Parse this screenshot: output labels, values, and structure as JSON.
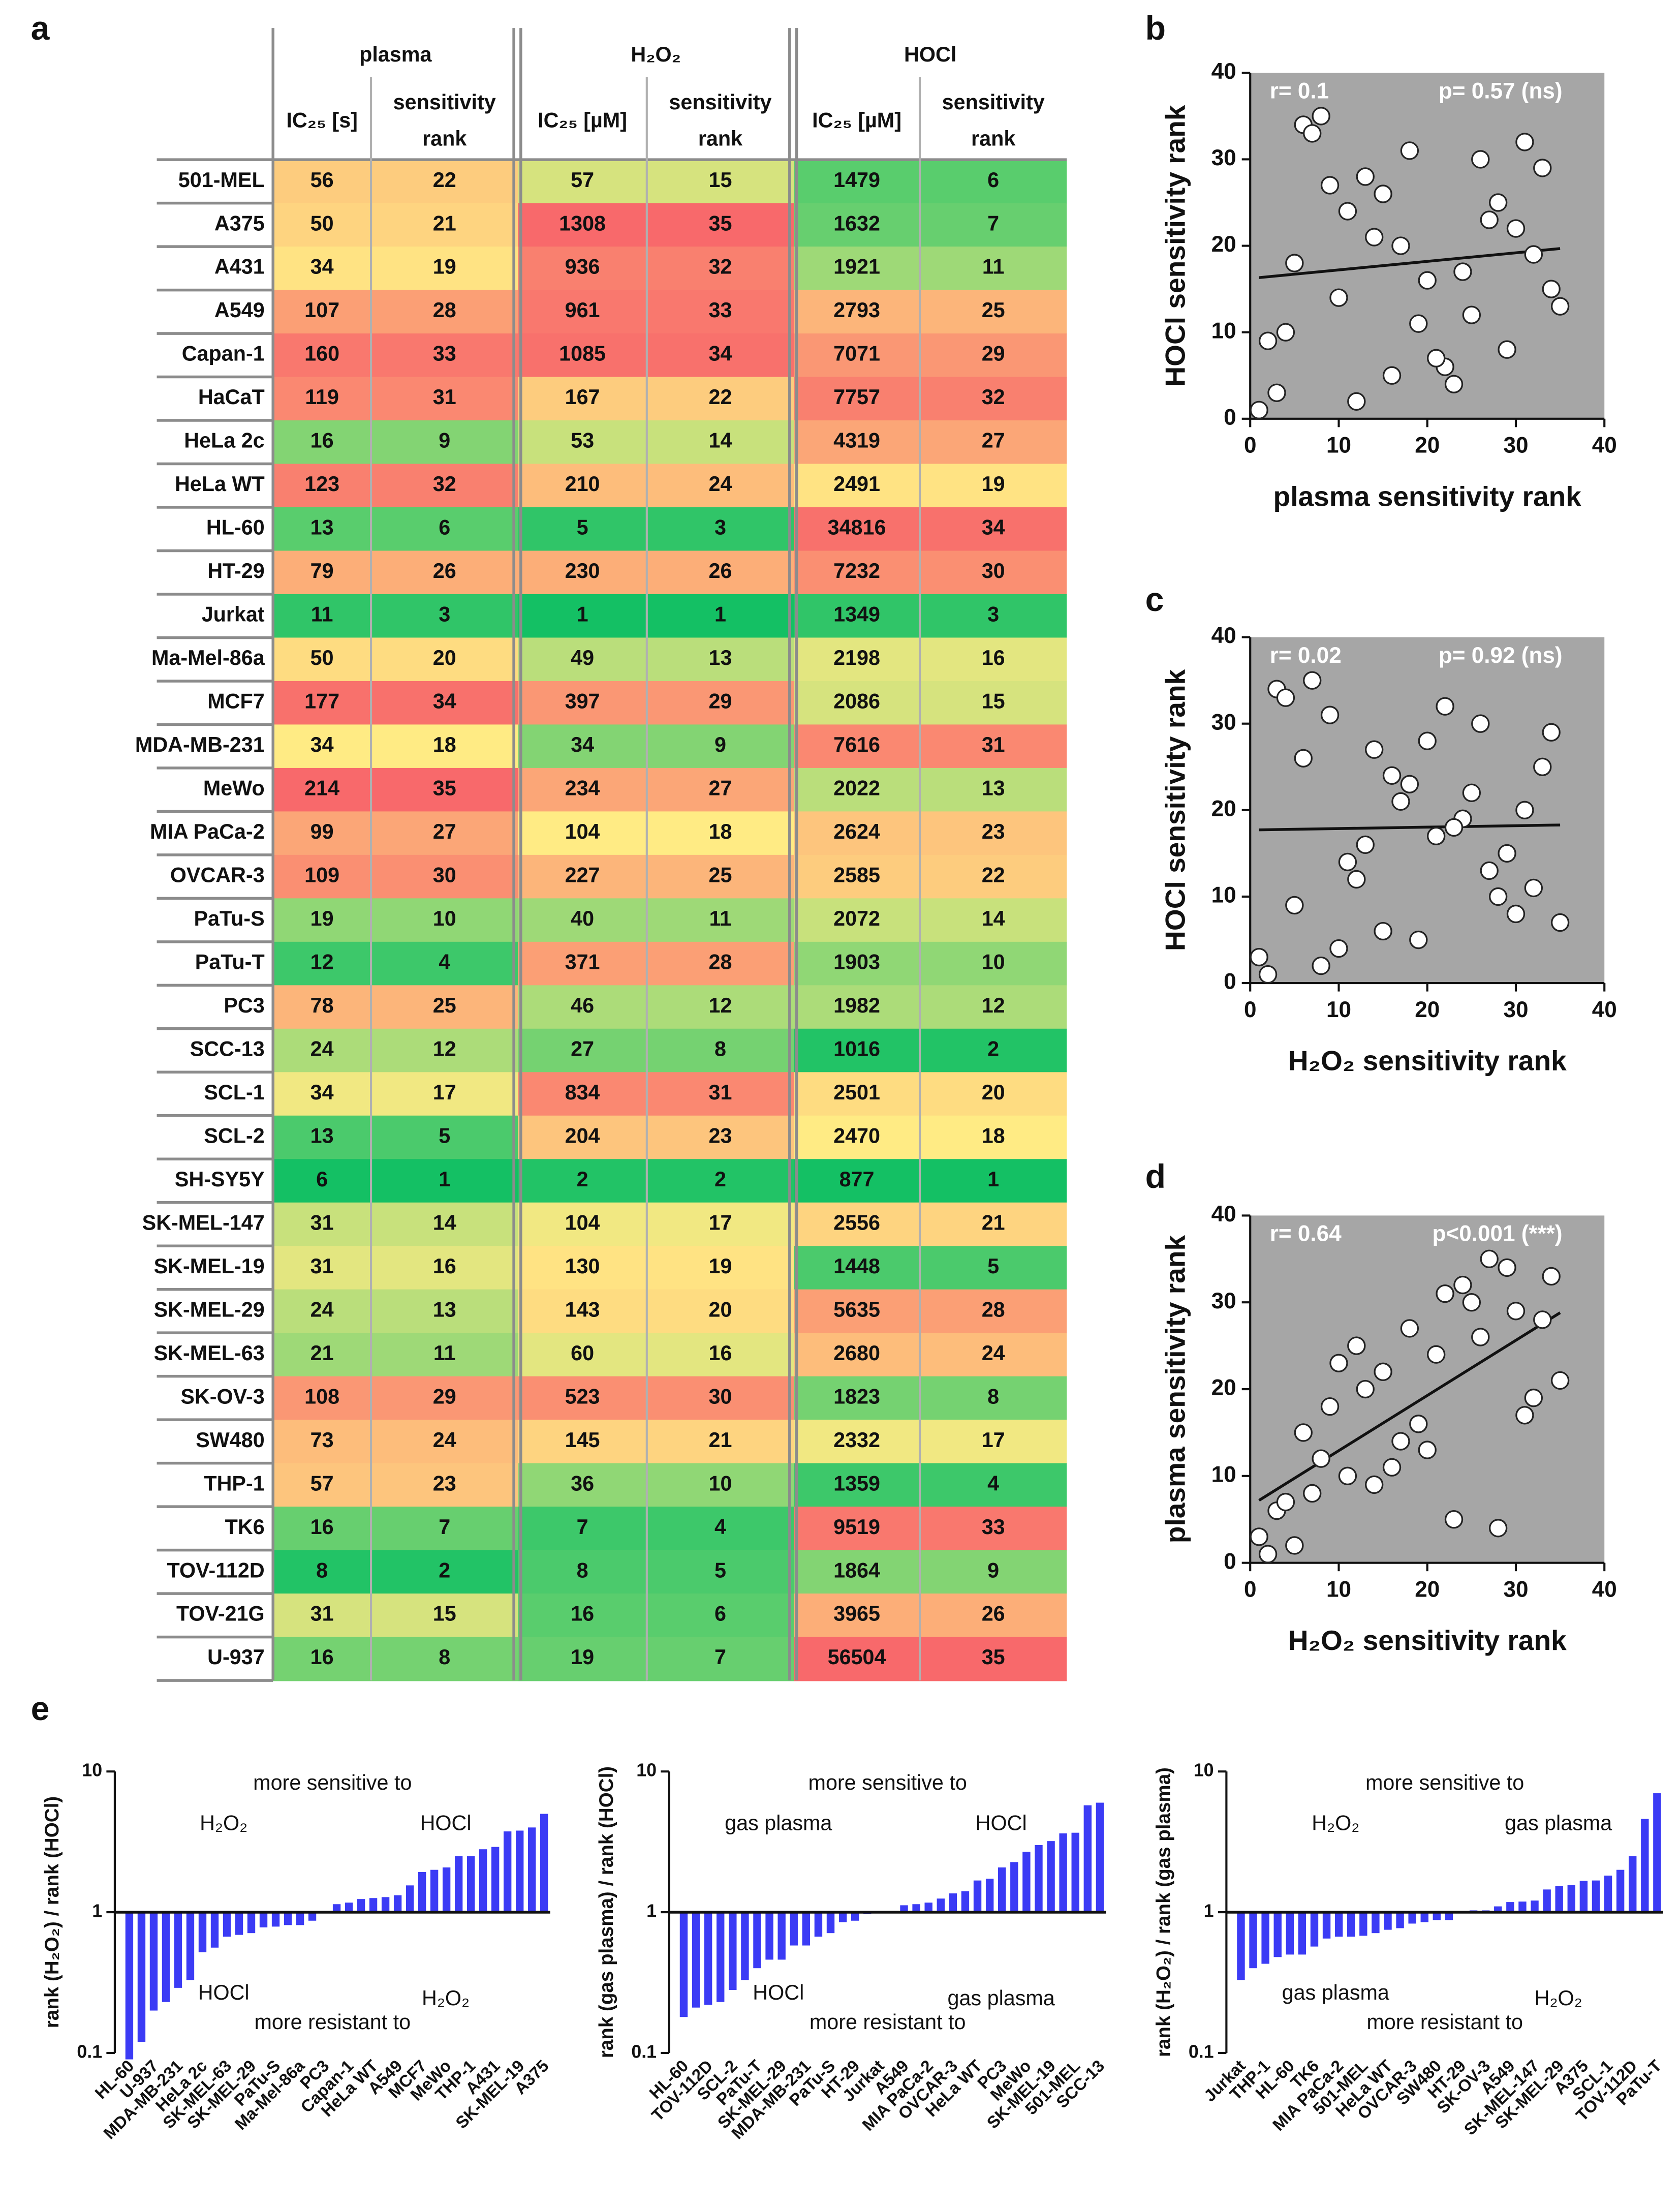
{
  "panel_labels": [
    "a",
    "b",
    "c",
    "d",
    "e"
  ],
  "table": {
    "group_headers": [
      "plasma",
      "H₂O₂",
      "HOCl"
    ],
    "column_headers": [
      [
        "IC₂₅ [s]"
      ],
      [
        "sensitivity",
        "rank"
      ],
      [
        "IC₂₅ [µM]"
      ],
      [
        "sensitivity",
        "rank"
      ],
      [
        "IC₂₅ [µM]"
      ],
      [
        "sensitivity",
        "rank"
      ]
    ],
    "color_scale": {
      "low": "#14c064",
      "mid": "#ffeb84",
      "high": "#f8696b"
    },
    "rows": [
      [
        "501-MEL",
        56,
        22,
        57,
        15,
        1479,
        6
      ],
      [
        "A375",
        50,
        21,
        1308,
        35,
        1632,
        7
      ],
      [
        "A431",
        34,
        19,
        936,
        32,
        1921,
        11
      ],
      [
        "A549",
        107,
        28,
        961,
        33,
        2793,
        25
      ],
      [
        "Capan-1",
        160,
        33,
        1085,
        34,
        7071,
        29
      ],
      [
        "HaCaT",
        119,
        31,
        167,
        22,
        7757,
        32
      ],
      [
        "HeLa 2c",
        16,
        9,
        53,
        14,
        4319,
        27
      ],
      [
        "HeLa WT",
        123,
        32,
        210,
        24,
        2491,
        19
      ],
      [
        "HL-60",
        13,
        6,
        5,
        3,
        34816,
        34
      ],
      [
        "HT-29",
        79,
        26,
        230,
        26,
        7232,
        30
      ],
      [
        "Jurkat",
        11,
        3,
        1,
        1,
        1349,
        3
      ],
      [
        "Ma-Mel-86a",
        50,
        20,
        49,
        13,
        2198,
        16
      ],
      [
        "MCF7",
        177,
        34,
        397,
        29,
        2086,
        15
      ],
      [
        "MDA-MB-231",
        34,
        18,
        34,
        9,
        7616,
        31
      ],
      [
        "MeWo",
        214,
        35,
        234,
        27,
        2022,
        13
      ],
      [
        "MIA PaCa-2",
        99,
        27,
        104,
        18,
        2624,
        23
      ],
      [
        "OVCAR-3",
        109,
        30,
        227,
        25,
        2585,
        22
      ],
      [
        "PaTu-S",
        19,
        10,
        40,
        11,
        2072,
        14
      ],
      [
        "PaTu-T",
        12,
        4,
        371,
        28,
        1903,
        10
      ],
      [
        "PC3",
        78,
        25,
        46,
        12,
        1982,
        12
      ],
      [
        "SCC-13",
        24,
        12,
        27,
        8,
        1016,
        2
      ],
      [
        "SCL-1",
        34,
        17,
        834,
        31,
        2501,
        20
      ],
      [
        "SCL-2",
        13,
        5,
        204,
        23,
        2470,
        18
      ],
      [
        "SH-SY5Y",
        6,
        1,
        2,
        2,
        877,
        1
      ],
      [
        "SK-MEL-147",
        31,
        14,
        104,
        17,
        2556,
        21
      ],
      [
        "SK-MEL-19",
        31,
        16,
        130,
        19,
        1448,
        5
      ],
      [
        "SK-MEL-29",
        24,
        13,
        143,
        20,
        5635,
        28
      ],
      [
        "SK-MEL-63",
        21,
        11,
        60,
        16,
        2680,
        24
      ],
      [
        "SK-OV-3",
        108,
        29,
        523,
        30,
        1823,
        8
      ],
      [
        "SW480",
        73,
        24,
        145,
        21,
        2332,
        17
      ],
      [
        "THP-1",
        57,
        23,
        36,
        10,
        1359,
        4
      ],
      [
        "TK6",
        16,
        7,
        7,
        4,
        9519,
        33
      ],
      [
        "TOV-112D",
        8,
        2,
        8,
        5,
        1864,
        9
      ],
      [
        "TOV-21G",
        31,
        15,
        16,
        6,
        3965,
        26
      ],
      [
        "U-937",
        16,
        8,
        19,
        7,
        56504,
        35
      ]
    ]
  },
  "chart_data": [
    {
      "type": "scatter",
      "annotations": [
        "r= 0.1",
        "p= 0.57 (ns)"
      ],
      "x_label": "plasma sensitivity rank",
      "y_label": "HOCl sensitivity rank",
      "x": [
        22,
        21,
        19,
        28,
        33,
        31,
        9,
        32,
        6,
        26,
        3,
        20,
        34,
        18,
        35,
        27,
        30,
        10,
        4,
        25,
        12,
        17,
        5,
        1,
        14,
        16,
        13,
        11,
        29,
        24,
        23,
        7,
        2,
        15,
        8
      ],
      "y": [
        6,
        7,
        11,
        25,
        29,
        32,
        27,
        19,
        34,
        30,
        3,
        16,
        15,
        31,
        13,
        23,
        22,
        14,
        10,
        12,
        2,
        20,
        18,
        1,
        21,
        5,
        28,
        24,
        8,
        17,
        4,
        33,
        9,
        26,
        35
      ],
      "xlim": [
        0,
        40
      ],
      "ylim": [
        0,
        40
      ],
      "xticks": [
        0,
        10,
        20,
        30,
        40
      ],
      "yticks": [
        0,
        10,
        20,
        30,
        40
      ],
      "color": "#ffffff",
      "background": "#a6a6a6",
      "trend_line": true
    },
    {
      "type": "scatter",
      "annotations": [
        "r= 0.02",
        "p= 0.92 (ns)"
      ],
      "x_label": "H₂O₂ sensitivity rank",
      "y_label": "HOCl sensitivity rank",
      "x": [
        15,
        35,
        32,
        33,
        34,
        22,
        14,
        24,
        3,
        26,
        1,
        13,
        29,
        9,
        27,
        18,
        25,
        11,
        28,
        12,
        8,
        31,
        23,
        2,
        17,
        19,
        20,
        16,
        30,
        21,
        10,
        4,
        5,
        6,
        7
      ],
      "y": [
        6,
        7,
        11,
        25,
        29,
        32,
        27,
        19,
        34,
        30,
        3,
        16,
        15,
        31,
        13,
        23,
        22,
        14,
        10,
        12,
        2,
        20,
        18,
        1,
        21,
        5,
        28,
        24,
        8,
        17,
        4,
        33,
        9,
        26,
        35
      ],
      "xlim": [
        0,
        40
      ],
      "ylim": [
        0,
        40
      ],
      "xticks": [
        0,
        10,
        20,
        30,
        40
      ],
      "yticks": [
        0,
        10,
        20,
        30,
        40
      ],
      "color": "#ffffff",
      "background": "#a6a6a6",
      "trend_line": true
    },
    {
      "type": "scatter",
      "annotations": [
        "r= 0.64",
        "p<0.001 (***)"
      ],
      "x_label": "H₂O₂ sensitivity rank",
      "y_label": "plasma sensitivity rank",
      "x": [
        15,
        35,
        32,
        33,
        34,
        22,
        14,
        24,
        3,
        26,
        1,
        13,
        29,
        9,
        27,
        18,
        25,
        11,
        28,
        12,
        8,
        31,
        23,
        2,
        17,
        19,
        20,
        16,
        30,
        21,
        10,
        4,
        5,
        6,
        7
      ],
      "y": [
        22,
        21,
        19,
        28,
        33,
        31,
        9,
        32,
        6,
        26,
        3,
        20,
        34,
        18,
        35,
        27,
        30,
        10,
        4,
        25,
        12,
        17,
        5,
        1,
        14,
        16,
        13,
        11,
        29,
        24,
        23,
        7,
        2,
        15,
        8
      ],
      "xlim": [
        0,
        40
      ],
      "ylim": [
        0,
        40
      ],
      "xticks": [
        0,
        10,
        20,
        30,
        40
      ],
      "yticks": [
        0,
        10,
        20,
        30,
        40
      ],
      "color": "#ffffff",
      "background": "#a6a6a6",
      "trend_line": true
    },
    {
      "type": "bar",
      "y_label": "rank (H₂O₂) / rank (HOCl)",
      "annotations": [
        "more sensitive to",
        "H₂O₂",
        "HOCl",
        "HOCl",
        "more resistant to",
        "H₂O₂"
      ],
      "categories": [
        "HL-60",
        null,
        "U-937",
        null,
        "MDA-MB-231",
        null,
        "HeLa 2c",
        null,
        "SK-MEL-63",
        null,
        "SK-MEL-29",
        null,
        "PaTu-S",
        null,
        "Ma-Mel-86a",
        null,
        "PC3",
        null,
        "Capan-1",
        null,
        "HeLa WT",
        null,
        "A549",
        null,
        "MCF7",
        null,
        "MeWo",
        null,
        "THP-1",
        null,
        "A431",
        null,
        "SK-MEL-19",
        null,
        "A375"
      ],
      "values": [
        0.09,
        0.12,
        0.2,
        0.23,
        0.29,
        0.33,
        0.52,
        0.56,
        0.67,
        0.69,
        0.71,
        0.78,
        0.79,
        0.81,
        0.81,
        0.87,
        1,
        1.14,
        1.17,
        1.24,
        1.26,
        1.28,
        1.32,
        1.55,
        1.93,
        2,
        2.08,
        2.5,
        2.5,
        2.8,
        2.91,
        3.75,
        3.8,
        4,
        5
      ],
      "log_scale": true,
      "ylim": [
        0.1,
        10
      ],
      "yticks": [
        0.1,
        1,
        10
      ],
      "color": "#3b3bf5"
    },
    {
      "type": "bar",
      "y_label": "rank (gas plasma) / rank (HOCl)",
      "annotations": [
        "more sensitive to",
        "gas plasma",
        "HOCl",
        "HOCl",
        "more resistant to",
        "gas plasma"
      ],
      "categories": [
        "HL-60",
        null,
        "TOV-112D",
        null,
        "SCL-2",
        null,
        "PaTu-T",
        null,
        "SK-MEL-29",
        null,
        "MDA-MB-231",
        null,
        "PaTu-S",
        null,
        "HT-29",
        null,
        "Jurkat",
        null,
        "A549",
        null,
        "MIA PaCa-2",
        null,
        "OVCAR-3",
        null,
        "HeLa WT",
        null,
        "PC3",
        null,
        "MeWo",
        null,
        "SK-MEL-19",
        null,
        "501-MEL",
        null,
        "SCC-13"
      ],
      "values": [
        0.18,
        0.21,
        0.22,
        0.23,
        0.28,
        0.33,
        0.4,
        0.46,
        0.46,
        0.58,
        0.58,
        0.67,
        0.71,
        0.85,
        0.87,
        0.97,
        1,
        1,
        1.12,
        1.14,
        1.17,
        1.25,
        1.36,
        1.41,
        1.68,
        1.73,
        2.08,
        2.27,
        2.69,
        3,
        3.2,
        3.63,
        3.67,
        5.75,
        6
      ],
      "log_scale": true,
      "ylim": [
        0.1,
        10
      ],
      "yticks": [
        0.1,
        1,
        10
      ],
      "color": "#3b3bf5"
    },
    {
      "type": "bar",
      "y_label": "rank (H₂O₂) / rank (gas plasma)",
      "annotations": [
        "more sensitive to",
        "H₂O₂",
        "gas plasma",
        "gas plasma",
        "more resistant to",
        "H₂O₂"
      ],
      "categories": [
        "Jurkat",
        null,
        "THP-1",
        null,
        "HL-60",
        null,
        "TK6",
        null,
        "MIA PaCa-2",
        null,
        "501-MEL",
        null,
        "HeLa WT",
        null,
        "OVCAR-3",
        null,
        "SW480",
        null,
        "HT-29",
        null,
        "SK-OV-3",
        null,
        "A549",
        null,
        "SK-MEL-147",
        null,
        "SK-MEL-29",
        null,
        "A375",
        null,
        "SCL-1",
        null,
        "TOV-112D",
        null,
        "PaTu-T"
      ],
      "values": [
        0.33,
        0.4,
        0.43,
        0.48,
        0.5,
        0.5,
        0.57,
        0.65,
        0.67,
        0.67,
        0.68,
        0.71,
        0.75,
        0.77,
        0.83,
        0.85,
        0.88,
        0.88,
        1,
        1.03,
        1.03,
        1.1,
        1.18,
        1.19,
        1.21,
        1.45,
        1.54,
        1.56,
        1.67,
        1.68,
        1.82,
        2,
        2.5,
        4.6,
        7
      ],
      "log_scale": true,
      "ylim": [
        0.1,
        10
      ],
      "yticks": [
        0.1,
        1,
        10
      ],
      "color": "#3b3bf5"
    }
  ]
}
